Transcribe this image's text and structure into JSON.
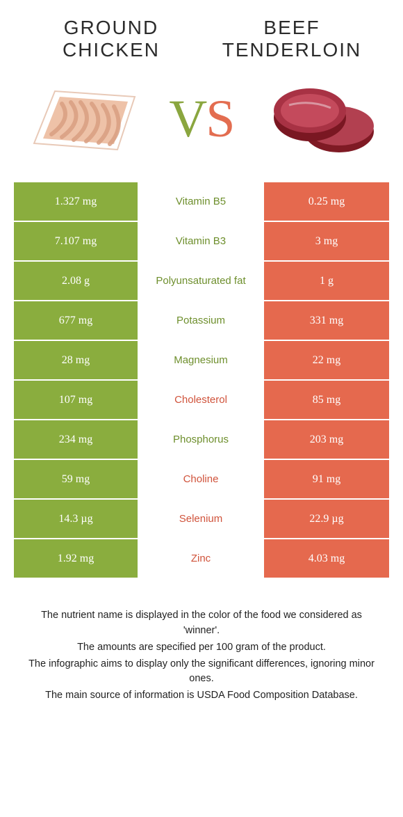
{
  "titles": {
    "left_line1": "GROUND",
    "left_line2": "CHICKEN",
    "right_line1": "BEEF",
    "right_line2": "TENDERLOIN"
  },
  "vs": {
    "v": "V",
    "s": "S"
  },
  "colors": {
    "left_bg": "#8aad3e",
    "right_bg": "#e5694e",
    "left_fg": "#6e8f2d",
    "right_fg": "#d0533b",
    "white": "#ffffff",
    "text": "#222222"
  },
  "rows": [
    {
      "left": "1.327 mg",
      "label": "Vitamin B5",
      "right": "0.25 mg",
      "winner": "left"
    },
    {
      "left": "7.107 mg",
      "label": "Vitamin B3",
      "right": "3 mg",
      "winner": "left"
    },
    {
      "left": "2.08 g",
      "label": "Polyunsaturated fat",
      "right": "1 g",
      "winner": "left"
    },
    {
      "left": "677 mg",
      "label": "Potassium",
      "right": "331 mg",
      "winner": "left"
    },
    {
      "left": "28 mg",
      "label": "Magnesium",
      "right": "22 mg",
      "winner": "left"
    },
    {
      "left": "107 mg",
      "label": "Cholesterol",
      "right": "85 mg",
      "winner": "right"
    },
    {
      "left": "234 mg",
      "label": "Phosphorus",
      "right": "203 mg",
      "winner": "left"
    },
    {
      "left": "59 mg",
      "label": "Choline",
      "right": "91 mg",
      "winner": "right"
    },
    {
      "left": "14.3 µg",
      "label": "Selenium",
      "right": "22.9 µg",
      "winner": "right"
    },
    {
      "left": "1.92 mg",
      "label": "Zinc",
      "right": "4.03 mg",
      "winner": "right"
    }
  ],
  "footnotes": {
    "l1": "The nutrient name is displayed in the color of the food we considered as 'winner'.",
    "l2": "The amounts are specified per 100 gram of the product.",
    "l3": "The infographic aims to display only the significant differences, ignoring minor ones.",
    "l4": "The main source of information is USDA Food Composition Database."
  }
}
